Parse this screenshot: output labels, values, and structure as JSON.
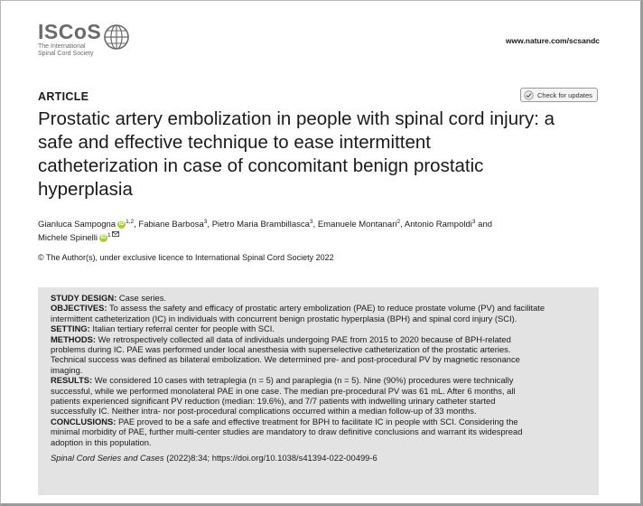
{
  "header": {
    "logo_word": "ISCoS",
    "logo_sub1": "The International",
    "logo_sub2": "Spinal Cord Society",
    "journal_url": "www.nature.com/scsandc"
  },
  "article": {
    "label": "ARTICLE",
    "check_updates": "Check for updates",
    "title_lines": [
      "Prostatic artery embolization in people with spinal cord injury: a",
      "safe and effective technique to ease intermittent",
      "catheterization in case of concomitant benign prostatic",
      "hyperplasia"
    ],
    "authors": [
      {
        "name": "Gianluca Sampogna",
        "sup": "1,2",
        "orcid": true
      },
      {
        "name": "Fabiane Barbosa",
        "sup": "3",
        "orcid": false
      },
      {
        "name": "Pietro Maria Brambillasca",
        "sup": "3",
        "orcid": false
      },
      {
        "name": "Emanuele Montanari",
        "sup": "2",
        "orcid": false
      },
      {
        "name": "Antonio Rampoldi",
        "sup": "3",
        "orcid": false
      },
      {
        "name": "Michele Spinelli",
        "sup": "1",
        "orcid": true
      }
    ],
    "and_word": "and",
    "copyright": "© The Author(s), under exclusive licence to International Spinal Cord Society 2022"
  },
  "abstract": {
    "study_design_label": "STUDY DESIGN:",
    "study_design": "Case series.",
    "objectives_label": "OBJECTIVES:",
    "objectives_lines": [
      "To assess the safety and efficacy of prostatic artery embolization (PAE) to reduce prostate volume (PV) and facilitate",
      "intermittent catheterization (IC) in individuals with concurrent benign prostatic hyperplasia (BPH) and spinal cord injury (SCI)."
    ],
    "setting_label": "SETTING:",
    "setting": "Italian tertiary referral center for people with SCI.",
    "methods_label": "METHODS:",
    "methods_lines": [
      "We retrospectively collected all data of individuals undergoing PAE from 2015 to 2020 because of BPH-related",
      "problems during IC. PAE was performed under local anesthesia with superselective catheterization of the prostatic arteries.",
      "Technical success was defined as bilateral embolization. We determined pre- and post-procedural PV by magnetic resonance",
      "imaging."
    ],
    "results_label": "RESULTS:",
    "results_lines": [
      "We considered 10 cases with tetraplegia (n = 5) and paraplegia (n = 5). Nine (90%) procedures were technically",
      "successful, while we performed monolateral PAE in one case. The median pre-procedural PV was 61 mL. After 6 months, all",
      "patients experienced significant PV reduction (median: 19.6%), and 7/7 patients with indwelling urinary catheter started",
      "successfully IC. Neither intra- nor post-procedural complications occurred within a median follow-up of 33 months."
    ],
    "conclusions_label": "CONCLUSIONS:",
    "conclusions_lines": [
      "PAE proved to be a safe and effective treatment for BPH to facilitate IC in people with SCI. Considering the",
      "minimal morbidity of PAE, further multi-center studies are mandatory to draw definitive conclusions and warrant its widespread",
      "adoption in this population."
    ],
    "citation_journal": "Spinal Cord Series and Cases",
    "citation_rest": "(2022)8:34; https://doi.org/10.1038/s41394-022-00499-6"
  }
}
